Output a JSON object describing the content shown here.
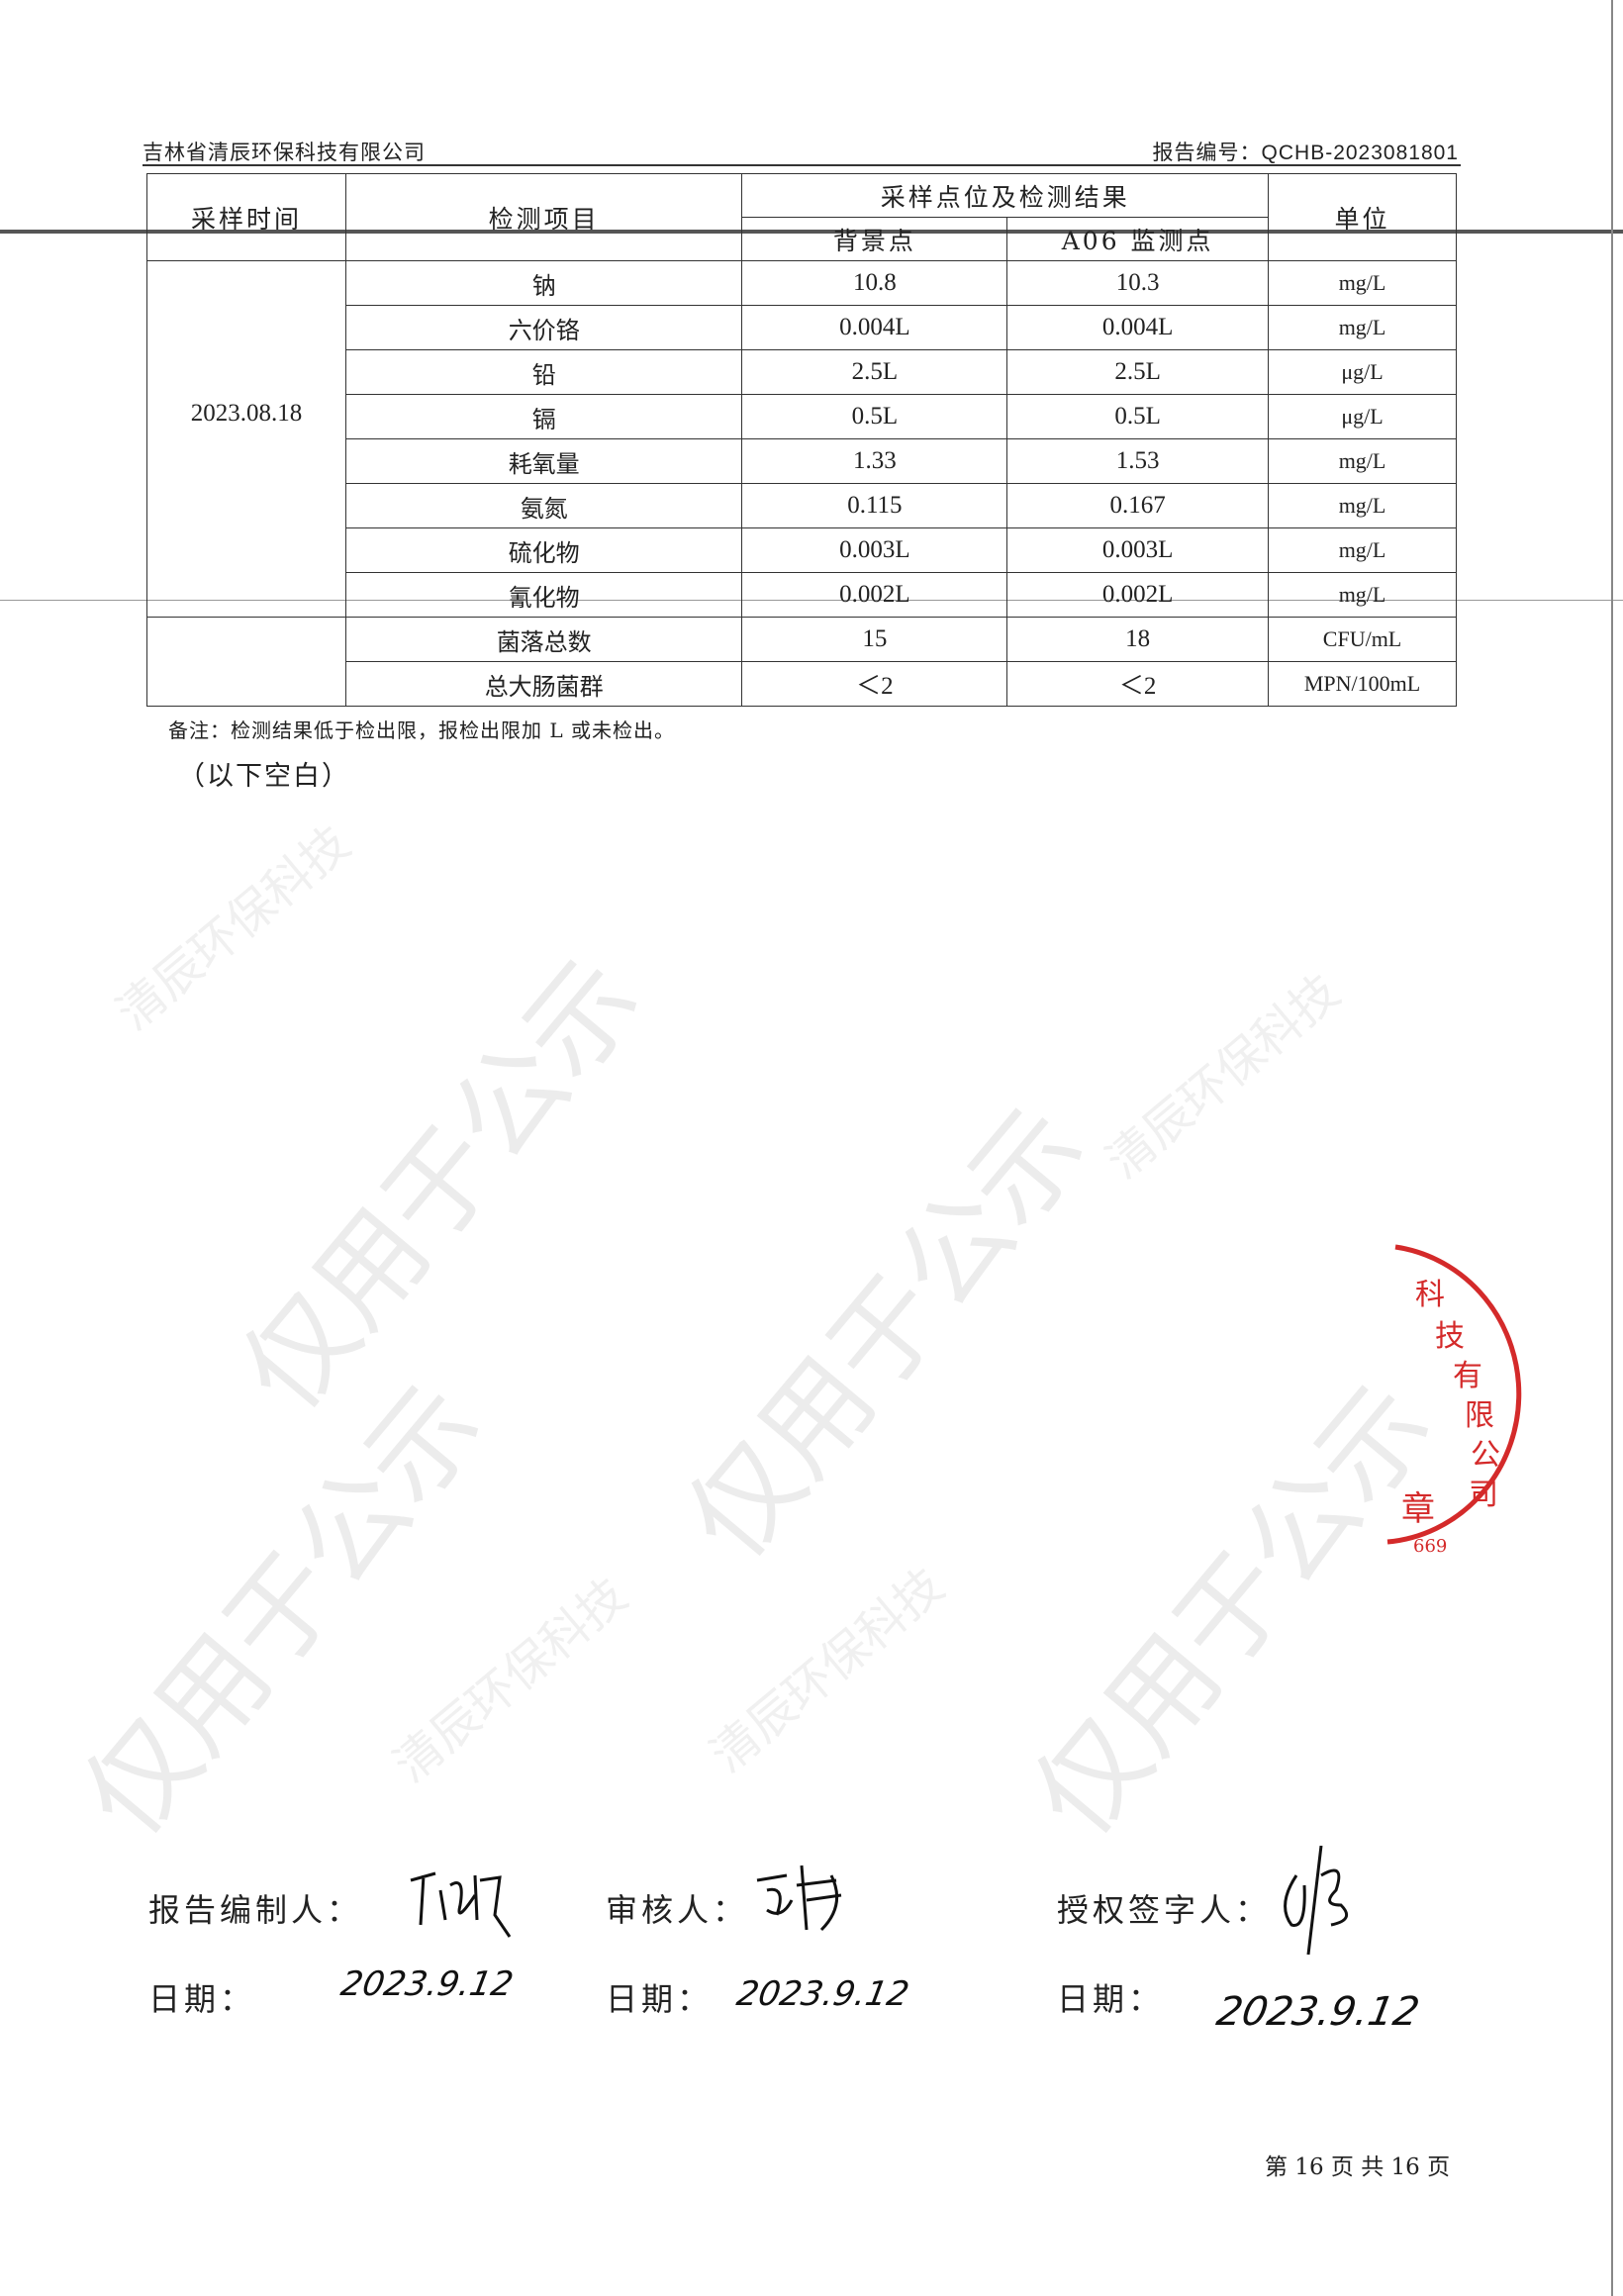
{
  "header": {
    "company": "吉林省清辰环保科技有限公司",
    "report_no": "报告编号：QCHB-2023081801"
  },
  "table": {
    "col_sampling_time": "采样时间",
    "col_item": "检测项目",
    "col_group": "采样点位及检测结果",
    "col_background": "背景点",
    "col_a06": "A06 监测点",
    "col_unit": "单位",
    "date": "2023.08.18",
    "rows": [
      {
        "item": "钠",
        "background": "10.8",
        "a06": "10.3",
        "unit": "mg/L"
      },
      {
        "item": "六价铬",
        "background": "0.004L",
        "a06": "0.004L",
        "unit": "mg/L"
      },
      {
        "item": "铅",
        "background": "2.5L",
        "a06": "2.5L",
        "unit": "μg/L"
      },
      {
        "item": "镉",
        "background": "0.5L",
        "a06": "0.5L",
        "unit": "μg/L"
      },
      {
        "item": "耗氧量",
        "background": "1.33",
        "a06": "1.53",
        "unit": "mg/L"
      },
      {
        "item": "氨氮",
        "background": "0.115",
        "a06": "0.167",
        "unit": "mg/L"
      },
      {
        "item": "硫化物",
        "background": "0.003L",
        "a06": "0.003L",
        "unit": "mg/L"
      },
      {
        "item": "氰化物",
        "background": "0.002L",
        "a06": "0.002L",
        "unit": "mg/L"
      },
      {
        "item": "菌落总数",
        "background": "15",
        "a06": "18",
        "unit": "CFU/mL"
      },
      {
        "item": "总大肠菌群",
        "background": "＜2",
        "a06": "＜2",
        "unit": "MPN/100mL"
      }
    ]
  },
  "note": "备注：检测结果低于检出限，报检出限加 L 或未检出。",
  "blank_marker": "（以下空白）",
  "signatures": {
    "compiler_label": "报告编制人：",
    "reviewer_label": "审核人：",
    "authorizer_label": "授权签字人：",
    "date_label": "日期：",
    "compiler_date": "2023.9.12",
    "reviewer_date": "2023.9.12",
    "authorizer_date": "2023.9.12"
  },
  "stamp": {
    "text": "科技有限公司",
    "suffix": "章",
    "code": "669",
    "color": "#d42a2a"
  },
  "watermark": {
    "primary": "仅用于公示",
    "secondary": "清辰环保科技"
  },
  "footer": {
    "page": "第 16 页 共 16 页"
  }
}
